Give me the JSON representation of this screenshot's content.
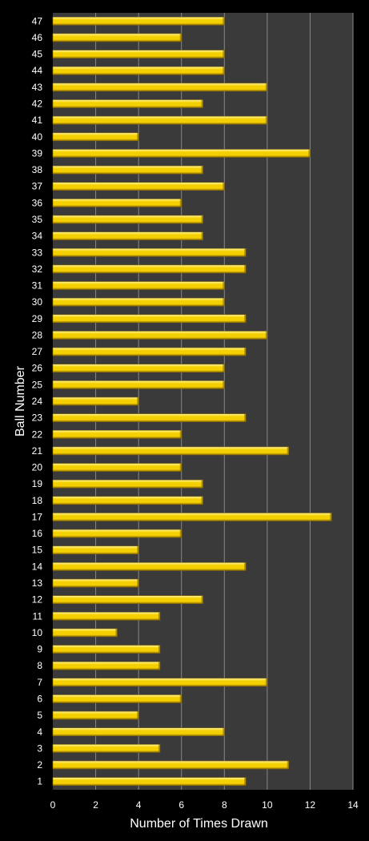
{
  "chart_data": {
    "type": "bar",
    "orientation": "horizontal",
    "categories": [
      "1",
      "2",
      "3",
      "4",
      "5",
      "6",
      "7",
      "8",
      "9",
      "10",
      "11",
      "12",
      "13",
      "14",
      "15",
      "16",
      "17",
      "18",
      "19",
      "20",
      "21",
      "22",
      "23",
      "24",
      "25",
      "26",
      "27",
      "28",
      "29",
      "30",
      "31",
      "32",
      "33",
      "34",
      "35",
      "36",
      "37",
      "38",
      "39",
      "40",
      "41",
      "42",
      "43",
      "44",
      "45",
      "46",
      "47"
    ],
    "values": [
      9,
      11,
      5,
      8,
      4,
      6,
      10,
      5,
      5,
      3,
      5,
      7,
      4,
      9,
      4,
      6,
      13,
      7,
      7,
      6,
      11,
      6,
      9,
      4,
      8,
      8,
      9,
      10,
      9,
      8,
      8,
      9,
      9,
      7,
      7,
      6,
      8,
      7,
      12,
      4,
      10,
      7,
      10,
      8,
      8,
      6,
      8
    ],
    "xlabel": "Number of Times Drawn",
    "ylabel": "Ball Number",
    "xlim": [
      0,
      14
    ],
    "xticks": [
      0,
      2,
      4,
      6,
      8,
      10,
      12,
      14
    ],
    "grid": "vertical",
    "legend": "none",
    "colors": {
      "page_background": "#000000",
      "plot_background": "#3a3a3a",
      "gridline": "#888888",
      "bar_fill": "#f5d000",
      "bar_highlight": "#fff6a0",
      "bar_shadow": "#8a6a00",
      "text": "#ffffff"
    }
  }
}
